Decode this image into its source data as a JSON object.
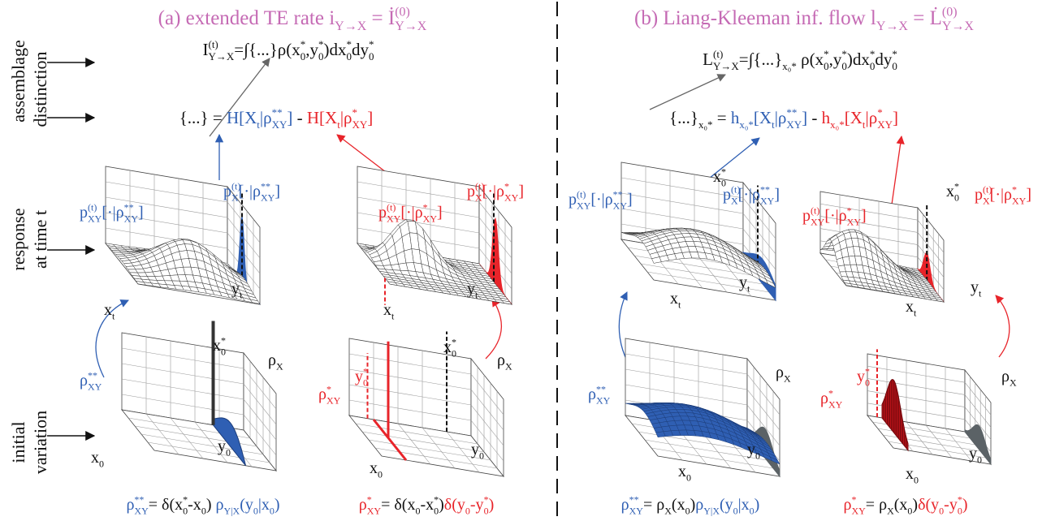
{
  "row_labels": [
    "assemblage",
    "distinction",
    "response",
    "at time t",
    "initial",
    "variation"
  ],
  "panels": [
    {
      "title": {
        "color": "#c56ab4",
        "parts": [
          {
            "text": "(a) extended TE rate  "
          },
          {
            "text": "i",
            "sub": "Y→X"
          },
          {
            "text": " = "
          },
          {
            "text": "İ",
            "sup": "(0)",
            "sub": "Y→X"
          }
        ]
      },
      "assemblage": {
        "parts": [
          {
            "text": "I",
            "sup": "(t)",
            "sub": "Y→X"
          },
          {
            "text": "=∫{...}ρ("
          },
          {
            "text": "x",
            "sup": "*",
            "sub": "0"
          },
          {
            "text": ","
          },
          {
            "text": "y",
            "sup": "*",
            "sub": "0"
          },
          {
            "text": ")d"
          },
          {
            "text": "x",
            "sup": "*",
            "sub": "0"
          },
          {
            "text": "d"
          },
          {
            "text": "y",
            "sup": "*",
            "sub": "0"
          }
        ]
      },
      "distinction": {
        "parts": [
          {
            "text": "{...} = "
          },
          {
            "text": "H[X",
            "sub": "t",
            "color": "#2f5fb3"
          },
          {
            "text": "|ρ",
            "sup": "**",
            "sub": "XY",
            "color": "#2f5fb3"
          },
          {
            "text": "]",
            "color": "#2f5fb3"
          },
          {
            "text": " - "
          },
          {
            "text": "H[X",
            "sub": "t",
            "color": "#e8242a"
          },
          {
            "text": "|ρ",
            "sup": "*",
            "sub": "XY",
            "color": "#e8242a"
          },
          {
            "text": "]",
            "color": "#e8242a"
          }
        ]
      },
      "labels": [
        {
          "color": "#2f5fb3",
          "parts": [
            {
              "text": "p",
              "sup": "(t)",
              "sub": "XY"
            },
            {
              "text": "[·|ρ",
              "sup": "**",
              "sub": "XY"
            },
            {
              "text": "]"
            }
          ]
        },
        {
          "color": "#2f5fb3",
          "parts": [
            {
              "text": "p",
              "sup": "(t)",
              "sub": "X"
            },
            {
              "text": "[·|ρ",
              "sup": "**",
              "sub": "XY"
            },
            {
              "text": "]"
            }
          ]
        },
        {
          "parts": [
            {
              "text": "x",
              "sub": "t"
            }
          ]
        },
        {
          "parts": [
            {
              "text": "y",
              "sub": "t"
            }
          ]
        },
        {
          "color": "#e8242a",
          "parts": [
            {
              "text": "p",
              "sup": "(t)",
              "sub": "XY"
            },
            {
              "text": "[·|ρ",
              "sup": "*",
              "sub": "XY"
            },
            {
              "text": "]"
            }
          ]
        },
        {
          "color": "#e8242a",
          "parts": [
            {
              "text": "p",
              "sup": "(t)",
              "sub": "X"
            },
            {
              "text": "[·|ρ",
              "sup": "*",
              "sub": "XY"
            },
            {
              "text": "]"
            }
          ]
        },
        {
          "parts": [
            {
              "text": "x",
              "sub": "t"
            }
          ]
        },
        {
          "parts": [
            {
              "text": "y",
              "sub": "t"
            }
          ]
        },
        {
          "parts": [
            {
              "text": "x",
              "sup": "*",
              "sub": "0"
            }
          ]
        },
        {
          "parts": [
            {
              "text": "ρ",
              "sub": "X"
            }
          ]
        },
        {
          "color": "#2f5fb3",
          "parts": [
            {
              "text": "ρ",
              "sup": "**",
              "sub": "XY"
            }
          ]
        },
        {
          "parts": [
            {
              "text": "x",
              "sub": "0"
            }
          ]
        },
        {
          "parts": [
            {
              "text": "y",
              "sub": "0"
            }
          ]
        },
        {
          "color": "#e8242a",
          "parts": [
            {
              "text": "y",
              "sup": "*",
              "sub": "0"
            }
          ]
        },
        {
          "parts": [
            {
              "text": "x",
              "sup": "*",
              "sub": "0"
            }
          ]
        },
        {
          "parts": [
            {
              "text": "ρ",
              "sub": "X"
            }
          ]
        },
        {
          "color": "#e8242a",
          "parts": [
            {
              "text": "ρ",
              "sup": "*",
              "sub": "XY"
            }
          ]
        },
        {
          "parts": [
            {
              "text": "x",
              "sub": "0"
            }
          ]
        },
        {
          "parts": [
            {
              "text": "y",
              "sub": "0"
            }
          ]
        }
      ],
      "bottom": [
        {
          "parts": [
            {
              "text": "ρ",
              "sup": "**",
              "sub": "XY",
              "color": "#2f5fb3"
            },
            {
              "text": "= δ("
            },
            {
              "text": "x",
              "sup": "*",
              "sub": "0"
            },
            {
              "text": "-x",
              "sub": "0"
            },
            {
              "text": ") "
            },
            {
              "text": "ρ",
              "sub": "Y|X",
              "color": "#2f5fb3"
            },
            {
              "text": "(y",
              "sub": "0",
              "color": "#2f5fb3"
            },
            {
              "text": "|x",
              "sub": "0",
              "color": "#2f5fb3"
            },
            {
              "text": ")",
              "color": "#2f5fb3"
            }
          ]
        },
        {
          "parts": [
            {
              "text": "ρ",
              "sup": "*",
              "sub": "XY",
              "color": "#e8242a"
            },
            {
              "text": "= δ(x",
              "sub": "0"
            },
            {
              "text": "-x",
              "sup": "*",
              "sub": "0"
            },
            {
              "text": ")"
            },
            {
              "text": "δ(y",
              "sub": "0",
              "color": "#e8242a"
            },
            {
              "text": "-y",
              "sup": "*",
              "sub": "0",
              "color": "#e8242a"
            },
            {
              "text": ")",
              "color": "#e8242a"
            }
          ]
        }
      ]
    },
    {
      "title": {
        "color": "#c56ab4",
        "parts": [
          {
            "text": "(b) Liang-Kleeman inf. flow  "
          },
          {
            "text": "l",
            "sub": "Y→X"
          },
          {
            "text": " = "
          },
          {
            "text": "L̇",
            "sup": "(0)",
            "sub": "Y→X"
          }
        ]
      },
      "assemblage": {
        "parts": [
          {
            "text": "L",
            "sup": "(t)",
            "sub": "Y→X"
          },
          {
            "text": "=∫{...}",
            "sub": "x₀*"
          },
          {
            "text": " ρ("
          },
          {
            "text": "x",
            "sup": "*",
            "sub": "0"
          },
          {
            "text": ","
          },
          {
            "text": "y",
            "sup": "*",
            "sub": "0"
          },
          {
            "text": ")d"
          },
          {
            "text": "x",
            "sup": "*",
            "sub": "0"
          },
          {
            "text": "d"
          },
          {
            "text": "y",
            "sup": "*",
            "sub": "0"
          }
        ]
      },
      "distinction": {
        "parts": [
          {
            "text": "{...}",
            "sub": "x₀*"
          },
          {
            "text": " = "
          },
          {
            "text": "h",
            "sub": "x₀*",
            "color": "#2f5fb3"
          },
          {
            "text": "[X",
            "sub": "t",
            "color": "#2f5fb3"
          },
          {
            "text": "|ρ",
            "sup": "**",
            "sub": "XY",
            "color": "#2f5fb3"
          },
          {
            "text": "]",
            "color": "#2f5fb3"
          },
          {
            "text": " - "
          },
          {
            "text": "h",
            "sub": "x₀*",
            "color": "#e8242a"
          },
          {
            "text": "[X",
            "sub": "t",
            "color": "#e8242a"
          },
          {
            "text": "|ρ",
            "sup": "*",
            "sub": "XY",
            "color": "#e8242a"
          },
          {
            "text": "]",
            "color": "#e8242a"
          }
        ]
      },
      "labels": [
        {
          "parts": [
            {
              "text": "x",
              "sup": "*",
              "sub": "0"
            }
          ]
        },
        {
          "color": "#2f5fb3",
          "parts": [
            {
              "text": "p",
              "sup": "(t)",
              "sub": "XY"
            },
            {
              "text": "[·|ρ",
              "sup": "**",
              "sub": "XY"
            },
            {
              "text": "]"
            }
          ]
        },
        {
          "color": "#2f5fb3",
          "parts": [
            {
              "text": "p",
              "sup": "(t)",
              "sub": "X"
            },
            {
              "text": "[·|ρ",
              "sup": "**",
              "sub": "XY"
            },
            {
              "text": "]"
            }
          ]
        },
        {
          "parts": [
            {
              "text": "x",
              "sub": "t"
            }
          ]
        },
        {
          "parts": [
            {
              "text": "y",
              "sub": "t"
            }
          ]
        },
        {
          "parts": [
            {
              "text": "x",
              "sup": "*",
              "sub": "0"
            }
          ]
        },
        {
          "color": "#e8242a",
          "parts": [
            {
              "text": "p",
              "sup": "(t)",
              "sub": "XY"
            },
            {
              "text": "[·|ρ",
              "sup": "*",
              "sub": "XY"
            },
            {
              "text": "]"
            }
          ]
        },
        {
          "color": "#e8242a",
          "parts": [
            {
              "text": "p",
              "sup": "(t)",
              "sub": "X"
            },
            {
              "text": "[·|ρ",
              "sup": "*",
              "sub": "XY"
            },
            {
              "text": "]"
            }
          ]
        },
        {
          "parts": [
            {
              "text": "x",
              "sub": "t"
            }
          ]
        },
        {
          "parts": [
            {
              "text": "y",
              "sub": "t"
            }
          ]
        },
        {
          "color": "#2f5fb3",
          "parts": [
            {
              "text": "ρ",
              "sup": "**",
              "sub": "XY"
            }
          ]
        },
        {
          "parts": [
            {
              "text": "ρ",
              "sub": "X"
            }
          ]
        },
        {
          "parts": [
            {
              "text": "x",
              "sub": "0"
            }
          ]
        },
        {
          "parts": [
            {
              "text": "y",
              "sub": "0"
            }
          ]
        },
        {
          "color": "#e8242a",
          "parts": [
            {
              "text": "y",
              "sup": "*",
              "sub": "0"
            }
          ]
        },
        {
          "color": "#e8242a",
          "parts": [
            {
              "text": "ρ",
              "sup": "*",
              "sub": "XY"
            }
          ]
        },
        {
          "parts": [
            {
              "text": "ρ",
              "sub": "X"
            }
          ]
        },
        {
          "parts": [
            {
              "text": "x",
              "sub": "0"
            }
          ]
        },
        {
          "parts": [
            {
              "text": "y",
              "sub": "0"
            }
          ]
        }
      ],
      "bottom": [
        {
          "parts": [
            {
              "text": "ρ",
              "sup": "**",
              "sub": "XY",
              "color": "#2f5fb3"
            },
            {
              "text": "= ρ",
              "sub": "X"
            },
            {
              "text": "(x",
              "sub": "0"
            },
            {
              "text": ")"
            },
            {
              "text": "ρ",
              "sub": "Y|X",
              "color": "#2f5fb3"
            },
            {
              "text": "(y",
              "sub": "0",
              "color": "#2f5fb3"
            },
            {
              "text": "|x",
              "sub": "0",
              "color": "#2f5fb3"
            },
            {
              "text": ")",
              "color": "#2f5fb3"
            }
          ]
        },
        {
          "parts": [
            {
              "text": "ρ",
              "sup": "*",
              "sub": "XY",
              "color": "#e8242a"
            },
            {
              "text": "= ρ",
              "sub": "X"
            },
            {
              "text": "(x",
              "sub": "0"
            },
            {
              "text": ")"
            },
            {
              "text": "δ(y",
              "sub": "0",
              "color": "#e8242a"
            },
            {
              "text": "-y",
              "sup": "*",
              "sub": "0",
              "color": "#e8242a"
            },
            {
              "text": ")",
              "color": "#e8242a"
            }
          ]
        }
      ]
    }
  ]
}
